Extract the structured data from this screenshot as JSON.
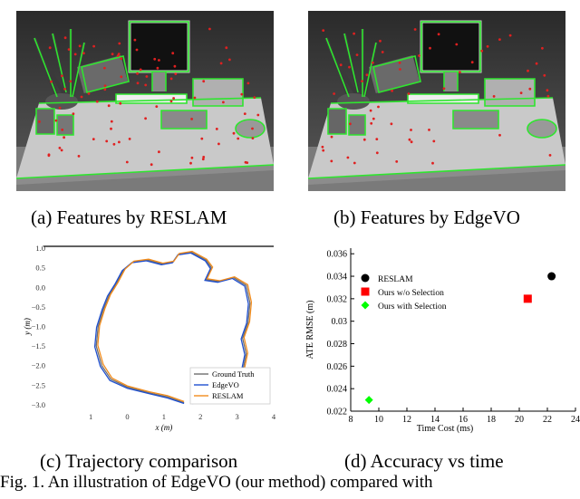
{
  "panels": {
    "a": {
      "caption": "(a) Features by RESLAM"
    },
    "b": {
      "caption": "(b) Features by EdgeVO"
    },
    "c": {
      "caption": "(c) Trajectory comparison"
    },
    "d": {
      "caption": "(d) Accuracy vs time"
    }
  },
  "figure_caption": "Fig. 1. An illustration of EdgeVO (our method) compared with",
  "colors": {
    "feature_edge": "#2fe52f",
    "feature_point": "#e02020",
    "ground_truth": "#6e6e6e",
    "edgevo": "#1f4fcf",
    "reslam": "#f28c1c"
  },
  "chart_data": [
    {
      "type": "line",
      "title": "",
      "xlabel": "x (m)",
      "ylabel": "y (m)",
      "xlim": [
        -1.5,
        4.0
      ],
      "ylim": [
        -3.05,
        1.05
      ],
      "x_ticks": [
        "1",
        "0",
        "1",
        "2",
        "3",
        "4"
      ],
      "y_ticks": [
        "1.0",
        "0.5",
        "0.0",
        "−0.5",
        "−1.0",
        "−1.5",
        "−2.0",
        "−2.5",
        "−3.0"
      ],
      "legend_position": "bottom-right",
      "series": [
        {
          "name": "Ground Truth",
          "points": [
            [
              1.55,
              -2.95
            ],
            [
              1.1,
              -2.8
            ],
            [
              0.6,
              -2.7
            ],
            [
              0.0,
              -2.55
            ],
            [
              -0.45,
              -2.35
            ],
            [
              -0.7,
              -2.0
            ],
            [
              -0.85,
              -1.5
            ],
            [
              -0.8,
              -1.0
            ],
            [
              -0.65,
              -0.55
            ],
            [
              -0.5,
              -0.2
            ],
            [
              -0.3,
              0.1
            ],
            [
              -0.1,
              0.45
            ],
            [
              0.15,
              0.65
            ],
            [
              0.55,
              0.7
            ],
            [
              0.95,
              0.6
            ],
            [
              1.25,
              0.65
            ],
            [
              1.4,
              0.85
            ],
            [
              1.75,
              0.9
            ],
            [
              2.15,
              0.7
            ],
            [
              2.3,
              0.5
            ],
            [
              2.15,
              0.2
            ],
            [
              2.5,
              0.15
            ],
            [
              2.9,
              0.25
            ],
            [
              3.25,
              0.05
            ],
            [
              3.35,
              -0.4
            ],
            [
              3.3,
              -0.9
            ],
            [
              3.15,
              -1.3
            ],
            [
              3.25,
              -1.7
            ],
            [
              3.15,
              -2.15
            ],
            [
              2.9,
              -2.5
            ],
            [
              2.5,
              -2.55
            ],
            [
              2.1,
              -2.75
            ],
            [
              1.8,
              -2.95
            ]
          ]
        },
        {
          "name": "EdgeVO",
          "points": [
            [
              1.55,
              -2.97
            ],
            [
              1.1,
              -2.83
            ],
            [
              0.6,
              -2.72
            ],
            [
              0.0,
              -2.58
            ],
            [
              -0.48,
              -2.38
            ],
            [
              -0.74,
              -2.02
            ],
            [
              -0.89,
              -1.52
            ],
            [
              -0.84,
              -1.02
            ],
            [
              -0.69,
              -0.57
            ],
            [
              -0.54,
              -0.22
            ],
            [
              -0.34,
              0.08
            ],
            [
              -0.14,
              0.43
            ],
            [
              0.12,
              0.63
            ],
            [
              0.52,
              0.68
            ],
            [
              0.93,
              0.58
            ],
            [
              1.23,
              0.63
            ],
            [
              1.38,
              0.83
            ],
            [
              1.73,
              0.88
            ],
            [
              2.13,
              0.68
            ],
            [
              2.27,
              0.48
            ],
            [
              2.12,
              0.18
            ],
            [
              2.47,
              0.13
            ],
            [
              2.87,
              0.23
            ],
            [
              3.21,
              0.03
            ],
            [
              3.31,
              -0.42
            ],
            [
              3.26,
              -0.92
            ],
            [
              3.11,
              -1.32
            ],
            [
              3.21,
              -1.72
            ],
            [
              3.11,
              -2.17
            ],
            [
              2.87,
              -2.52
            ],
            [
              2.48,
              -2.57
            ],
            [
              2.08,
              -2.78
            ],
            [
              1.78,
              -2.98
            ]
          ]
        },
        {
          "name": "RESLAM",
          "points": [
            [
              1.55,
              -2.92
            ],
            [
              1.1,
              -2.77
            ],
            [
              0.6,
              -2.67
            ],
            [
              0.0,
              -2.52
            ],
            [
              -0.42,
              -2.32
            ],
            [
              -0.66,
              -1.97
            ],
            [
              -0.81,
              -1.48
            ],
            [
              -0.76,
              -0.98
            ],
            [
              -0.61,
              -0.53
            ],
            [
              -0.46,
              -0.18
            ],
            [
              -0.26,
              0.12
            ],
            [
              -0.06,
              0.47
            ],
            [
              0.18,
              0.67
            ],
            [
              0.58,
              0.72
            ],
            [
              0.97,
              0.62
            ],
            [
              1.27,
              0.67
            ],
            [
              1.42,
              0.87
            ],
            [
              1.77,
              0.92
            ],
            [
              2.17,
              0.72
            ],
            [
              2.33,
              0.52
            ],
            [
              2.18,
              0.22
            ],
            [
              2.53,
              0.17
            ],
            [
              2.93,
              0.27
            ],
            [
              3.29,
              0.07
            ],
            [
              3.39,
              -0.38
            ],
            [
              3.34,
              -0.88
            ],
            [
              3.19,
              -1.28
            ],
            [
              3.29,
              -1.68
            ],
            [
              3.19,
              -2.13
            ],
            [
              2.93,
              -2.48
            ],
            [
              2.52,
              -2.53
            ],
            [
              2.12,
              -2.72
            ],
            [
              1.82,
              -2.92
            ]
          ]
        }
      ]
    },
    {
      "type": "scatter",
      "title": "",
      "xlabel": "Time Cost (ms)",
      "ylabel": "ATE RMSE (m)",
      "xlim": [
        8,
        24
      ],
      "ylim": [
        0.022,
        0.0365
      ],
      "x_ticks": [
        8,
        10,
        12,
        14,
        16,
        18,
        20,
        22,
        24
      ],
      "y_ticks": [
        "0.022",
        "0.024",
        "0.026",
        "0.028",
        "0.03",
        "0.032",
        "0.034",
        "0.036"
      ],
      "legend_position": "top-left",
      "series": [
        {
          "name": "RESLAM",
          "marker": "circle",
          "color": "#000000",
          "x": [
            22.3
          ],
          "y": [
            0.034
          ]
        },
        {
          "name": "Ours w/o Selection",
          "marker": "square",
          "color": "#ff0000",
          "x": [
            20.6
          ],
          "y": [
            0.032
          ]
        },
        {
          "name": "Ours with Selection",
          "marker": "diamond",
          "color": "#00ff00",
          "x": [
            9.3
          ],
          "y": [
            0.023
          ]
        }
      ]
    }
  ]
}
